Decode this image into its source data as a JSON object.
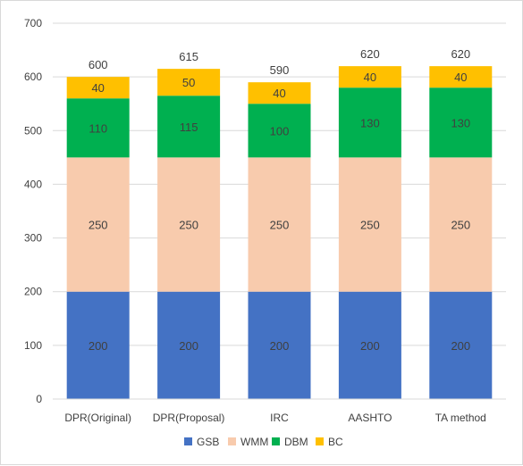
{
  "chart_data": {
    "type": "bar",
    "stacked": true,
    "categories": [
      "DPR(Original)",
      "DPR(Proposal)",
      "IRC",
      "AASHTO",
      "TA method"
    ],
    "series": [
      {
        "name": "GSB",
        "color": "#4472C4",
        "values": [
          200,
          200,
          200,
          200,
          200
        ]
      },
      {
        "name": "WMM",
        "color": "#F8CBAD",
        "values": [
          250,
          250,
          250,
          250,
          250
        ]
      },
      {
        "name": "DBM",
        "color": "#00B050",
        "values": [
          110,
          115,
          100,
          130,
          130
        ]
      },
      {
        "name": "BC",
        "color": "#FFC000",
        "values": [
          40,
          50,
          40,
          40,
          40
        ]
      }
    ],
    "totals": [
      600,
      615,
      590,
      620,
      620
    ],
    "ylim": [
      0,
      700
    ],
    "yticks": [
      0,
      100,
      200,
      300,
      400,
      500,
      600,
      700
    ],
    "grid": true,
    "legend_position": "bottom",
    "title": "",
    "xlabel": "",
    "ylabel": ""
  }
}
